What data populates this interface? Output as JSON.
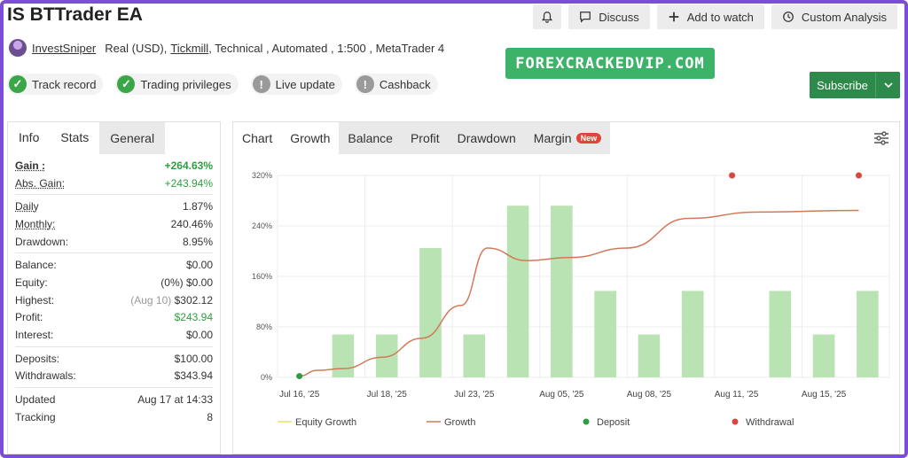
{
  "title": "IS BTTrader EA",
  "top_buttons": {
    "discuss": "Discuss",
    "watch": "Add to watch",
    "analysis": "Custom Analysis"
  },
  "meta": {
    "author": "InvestSniper",
    "account": "Real (USD),",
    "broker": "Tickmill",
    "details": ", Technical , Automated , 1:500 , MetaTrader 4"
  },
  "badges": [
    "Track record",
    "Trading privileges",
    "Live update",
    "Cashback"
  ],
  "watermark": "FOREXCRACKEDVIP.COM",
  "subscribe": "Subscribe",
  "left_tabs": [
    "Info",
    "Stats",
    "General"
  ],
  "stats": {
    "gain": {
      "label": "Gain :",
      "value": "+264.63%"
    },
    "abs_gain": {
      "label": "Abs. Gain:",
      "value": "+243.94%"
    },
    "daily": {
      "label": "Daily",
      "value": "1.87%"
    },
    "monthly": {
      "label": "Monthly:",
      "value": "240.46%"
    },
    "drawdown": {
      "label": "Drawdown:",
      "value": "8.95%"
    },
    "balance": {
      "label": "Balance:",
      "value": "$0.00"
    },
    "equity": {
      "label": "Equity:",
      "note": "(0%)",
      "value": "$0.00"
    },
    "highest": {
      "label": "Highest:",
      "note": "(Aug 10)",
      "value": "$302.12"
    },
    "profit": {
      "label": "Profit:",
      "value": "$243.94"
    },
    "interest": {
      "label": "Interest:",
      "value": "$0.00"
    },
    "deposits": {
      "label": "Deposits:",
      "value": "$100.00"
    },
    "withdrawals": {
      "label": "Withdrawals:",
      "value": "$343.94"
    },
    "updated": {
      "label": "Updated",
      "value": "Aug 17 at 14:33"
    },
    "tracking": {
      "label": "Tracking",
      "value": "8"
    }
  },
  "right_tabs": {
    "chart": "Chart",
    "growth": "Growth",
    "balance": "Balance",
    "profit": "Profit",
    "drawdown": "Drawdown",
    "margin": "Margin",
    "new": "New"
  },
  "colors": {
    "green_accent": "#2e9e41",
    "bar": "#b9e3b2",
    "growth_line": "#d2795a",
    "equity_line": "#e8e06a",
    "deposit": "#2e9e41",
    "withdrawal": "#d9473c"
  },
  "chart_data": {
    "type": "bar",
    "y_ticks": [
      "0%",
      "80%",
      "160%",
      "240%",
      "320%"
    ],
    "ylim": [
      0,
      320
    ],
    "x_tick_labels": [
      "Jul 16, '25",
      "Jul 18, '25",
      "Jul 23, '25",
      "Aug 05, '25",
      "Aug 08, '25",
      "Aug 11, '25",
      "Aug 15, '25"
    ],
    "bars": [
      0,
      68,
      68,
      205,
      68,
      272,
      272,
      137,
      68,
      137,
      0,
      137,
      68,
      137
    ],
    "growth": [
      [
        0,
        2
      ],
      [
        0.4,
        11
      ],
      [
        1,
        14
      ],
      [
        1.9,
        32
      ],
      [
        2.8,
        62
      ],
      [
        3.7,
        114
      ],
      [
        4.3,
        205
      ],
      [
        5.2,
        185
      ],
      [
        6.2,
        190
      ],
      [
        7.5,
        205
      ],
      [
        8.9,
        252
      ],
      [
        10.5,
        262
      ],
      [
        12.8,
        264.63
      ]
    ],
    "deposits": [
      [
        0,
        2
      ]
    ],
    "withdrawals": [
      [
        9.9,
        320
      ],
      [
        12.8,
        320
      ]
    ],
    "legend": [
      "Equity Growth",
      "Growth",
      "Deposit",
      "Withdrawal"
    ]
  }
}
